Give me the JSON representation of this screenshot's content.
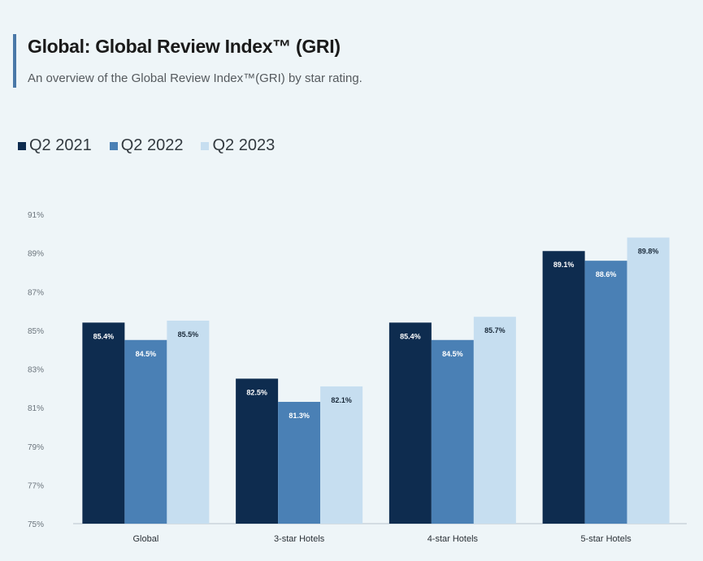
{
  "header": {
    "title": "Global: Global Review Index™ (GRI)",
    "subtitle": "An overview of the Global Review Index™(GRI) by star rating."
  },
  "colors": {
    "accent": "#4a78a8",
    "series": [
      "#0e2c4f",
      "#4a80b5",
      "#c6def0"
    ],
    "label_on_dark": "#ffffff",
    "label_on_light": "#1a2a3a"
  },
  "chart_data": {
    "type": "bar",
    "categories": [
      "Global",
      "3-star Hotels",
      "4-star Hotels",
      "5-star Hotels"
    ],
    "series": [
      {
        "name": "Q2 2021",
        "values": [
          85.4,
          82.5,
          85.4,
          89.1
        ],
        "labels": [
          "85.4%",
          "82.5%",
          "85.4%",
          "89.1%"
        ]
      },
      {
        "name": "Q2 2022",
        "values": [
          84.5,
          81.3,
          84.5,
          88.6
        ],
        "labels": [
          "84.5%",
          "81.3%",
          "84.5%",
          "88.6%"
        ]
      },
      {
        "name": "Q2 2023",
        "values": [
          85.5,
          82.1,
          85.7,
          89.8
        ],
        "labels": [
          "85.5%",
          "82.1%",
          "85.7%",
          "89.8%"
        ]
      }
    ],
    "yticks": [
      "75%",
      "77%",
      "79%",
      "81%",
      "83%",
      "85%",
      "87%",
      "89%",
      "91%"
    ],
    "ylim": [
      75,
      91
    ],
    "grid": false,
    "legend_position": "top-left"
  }
}
